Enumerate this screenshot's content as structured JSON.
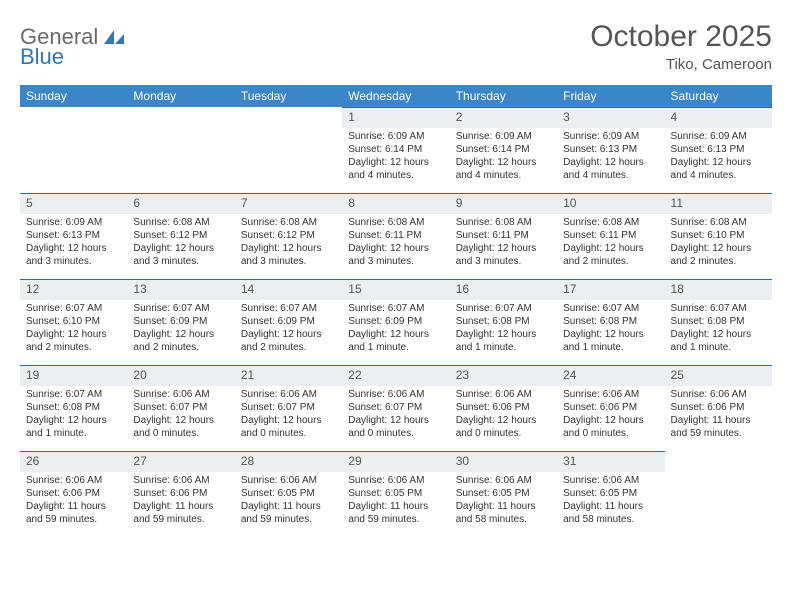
{
  "logo": {
    "text1": "General",
    "text2": "Blue"
  },
  "title": "October 2025",
  "subtitle": "Tiko, Cameroon",
  "colors": {
    "header_bg": "#3a86c8",
    "header_text": "#ffffff",
    "daynum_bg": "#eceff1",
    "border": "#2e6aa3",
    "logo_gray": "#6a6a6a",
    "logo_blue": "#2e77bb"
  },
  "weekdays": [
    "Sunday",
    "Monday",
    "Tuesday",
    "Wednesday",
    "Thursday",
    "Friday",
    "Saturday"
  ],
  "weeks": [
    [
      null,
      null,
      null,
      {
        "n": "1",
        "sr": "Sunrise: 6:09 AM",
        "ss": "Sunset: 6:14 PM",
        "dl": "Daylight: 12 hours and 4 minutes."
      },
      {
        "n": "2",
        "sr": "Sunrise: 6:09 AM",
        "ss": "Sunset: 6:14 PM",
        "dl": "Daylight: 12 hours and 4 minutes."
      },
      {
        "n": "3",
        "sr": "Sunrise: 6:09 AM",
        "ss": "Sunset: 6:13 PM",
        "dl": "Daylight: 12 hours and 4 minutes."
      },
      {
        "n": "4",
        "sr": "Sunrise: 6:09 AM",
        "ss": "Sunset: 6:13 PM",
        "dl": "Daylight: 12 hours and 4 minutes."
      }
    ],
    [
      {
        "n": "5",
        "sr": "Sunrise: 6:09 AM",
        "ss": "Sunset: 6:13 PM",
        "dl": "Daylight: 12 hours and 3 minutes."
      },
      {
        "n": "6",
        "sr": "Sunrise: 6:08 AM",
        "ss": "Sunset: 6:12 PM",
        "dl": "Daylight: 12 hours and 3 minutes."
      },
      {
        "n": "7",
        "sr": "Sunrise: 6:08 AM",
        "ss": "Sunset: 6:12 PM",
        "dl": "Daylight: 12 hours and 3 minutes."
      },
      {
        "n": "8",
        "sr": "Sunrise: 6:08 AM",
        "ss": "Sunset: 6:11 PM",
        "dl": "Daylight: 12 hours and 3 minutes."
      },
      {
        "n": "9",
        "sr": "Sunrise: 6:08 AM",
        "ss": "Sunset: 6:11 PM",
        "dl": "Daylight: 12 hours and 3 minutes."
      },
      {
        "n": "10",
        "sr": "Sunrise: 6:08 AM",
        "ss": "Sunset: 6:11 PM",
        "dl": "Daylight: 12 hours and 2 minutes."
      },
      {
        "n": "11",
        "sr": "Sunrise: 6:08 AM",
        "ss": "Sunset: 6:10 PM",
        "dl": "Daylight: 12 hours and 2 minutes."
      }
    ],
    [
      {
        "n": "12",
        "sr": "Sunrise: 6:07 AM",
        "ss": "Sunset: 6:10 PM",
        "dl": "Daylight: 12 hours and 2 minutes."
      },
      {
        "n": "13",
        "sr": "Sunrise: 6:07 AM",
        "ss": "Sunset: 6:09 PM",
        "dl": "Daylight: 12 hours and 2 minutes."
      },
      {
        "n": "14",
        "sr": "Sunrise: 6:07 AM",
        "ss": "Sunset: 6:09 PM",
        "dl": "Daylight: 12 hours and 2 minutes."
      },
      {
        "n": "15",
        "sr": "Sunrise: 6:07 AM",
        "ss": "Sunset: 6:09 PM",
        "dl": "Daylight: 12 hours and 1 minute."
      },
      {
        "n": "16",
        "sr": "Sunrise: 6:07 AM",
        "ss": "Sunset: 6:08 PM",
        "dl": "Daylight: 12 hours and 1 minute."
      },
      {
        "n": "17",
        "sr": "Sunrise: 6:07 AM",
        "ss": "Sunset: 6:08 PM",
        "dl": "Daylight: 12 hours and 1 minute."
      },
      {
        "n": "18",
        "sr": "Sunrise: 6:07 AM",
        "ss": "Sunset: 6:08 PM",
        "dl": "Daylight: 12 hours and 1 minute."
      }
    ],
    [
      {
        "n": "19",
        "sr": "Sunrise: 6:07 AM",
        "ss": "Sunset: 6:08 PM",
        "dl": "Daylight: 12 hours and 1 minute."
      },
      {
        "n": "20",
        "sr": "Sunrise: 6:06 AM",
        "ss": "Sunset: 6:07 PM",
        "dl": "Daylight: 12 hours and 0 minutes."
      },
      {
        "n": "21",
        "sr": "Sunrise: 6:06 AM",
        "ss": "Sunset: 6:07 PM",
        "dl": "Daylight: 12 hours and 0 minutes."
      },
      {
        "n": "22",
        "sr": "Sunrise: 6:06 AM",
        "ss": "Sunset: 6:07 PM",
        "dl": "Daylight: 12 hours and 0 minutes."
      },
      {
        "n": "23",
        "sr": "Sunrise: 6:06 AM",
        "ss": "Sunset: 6:06 PM",
        "dl": "Daylight: 12 hours and 0 minutes."
      },
      {
        "n": "24",
        "sr": "Sunrise: 6:06 AM",
        "ss": "Sunset: 6:06 PM",
        "dl": "Daylight: 12 hours and 0 minutes."
      },
      {
        "n": "25",
        "sr": "Sunrise: 6:06 AM",
        "ss": "Sunset: 6:06 PM",
        "dl": "Daylight: 11 hours and 59 minutes."
      }
    ],
    [
      {
        "n": "26",
        "sr": "Sunrise: 6:06 AM",
        "ss": "Sunset: 6:06 PM",
        "dl": "Daylight: 11 hours and 59 minutes."
      },
      {
        "n": "27",
        "sr": "Sunrise: 6:06 AM",
        "ss": "Sunset: 6:06 PM",
        "dl": "Daylight: 11 hours and 59 minutes."
      },
      {
        "n": "28",
        "sr": "Sunrise: 6:06 AM",
        "ss": "Sunset: 6:05 PM",
        "dl": "Daylight: 11 hours and 59 minutes."
      },
      {
        "n": "29",
        "sr": "Sunrise: 6:06 AM",
        "ss": "Sunset: 6:05 PM",
        "dl": "Daylight: 11 hours and 59 minutes."
      },
      {
        "n": "30",
        "sr": "Sunrise: 6:06 AM",
        "ss": "Sunset: 6:05 PM",
        "dl": "Daylight: 11 hours and 58 minutes."
      },
      {
        "n": "31",
        "sr": "Sunrise: 6:06 AM",
        "ss": "Sunset: 6:05 PM",
        "dl": "Daylight: 11 hours and 58 minutes."
      },
      null
    ]
  ]
}
